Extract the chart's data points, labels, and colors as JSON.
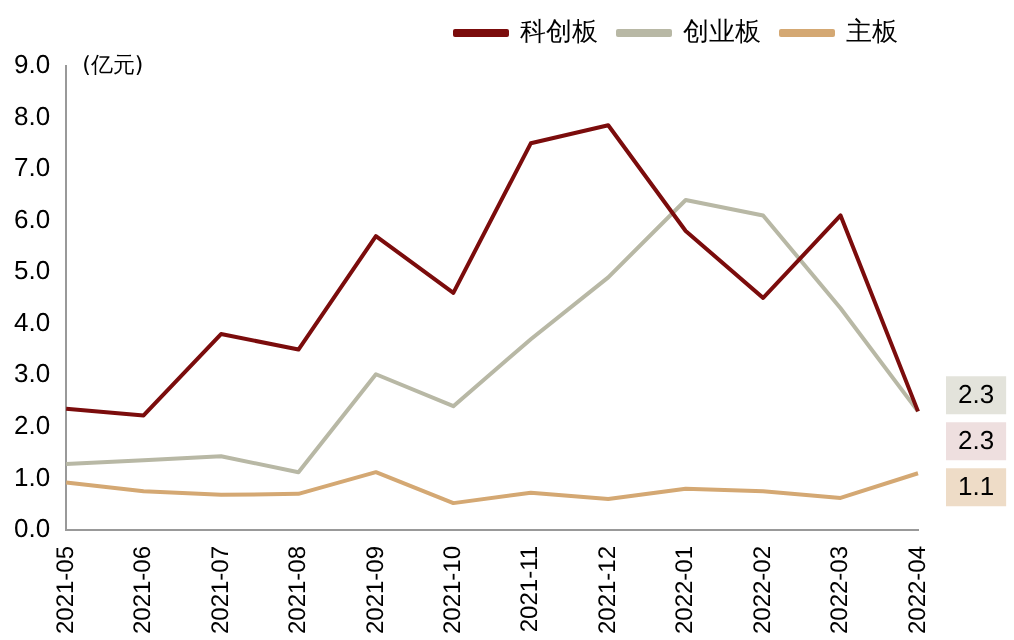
{
  "chart_data": {
    "type": "line",
    "ylabel": "(亿元)",
    "categories": [
      "2021-05",
      "2021-06",
      "2021-07",
      "2021-08",
      "2021-09",
      "2021-10",
      "2021-11",
      "2021-12",
      "2022-01",
      "2022-02",
      "2022-03",
      "2022-04"
    ],
    "series": [
      {
        "name": "科创板",
        "color": "#7b0c0c",
        "values": [
          2.35,
          2.22,
          3.8,
          3.5,
          5.7,
          4.6,
          7.5,
          7.85,
          5.8,
          4.5,
          6.1,
          2.3
        ],
        "value_labels": [
          null,
          null,
          null,
          null,
          null,
          null,
          null,
          null,
          null,
          null,
          null,
          "2.3"
        ]
      },
      {
        "name": "创业板",
        "color": "#b8b8a5",
        "values": [
          1.28,
          1.35,
          1.43,
          1.12,
          3.02,
          2.4,
          3.7,
          4.9,
          6.4,
          6.1,
          4.3,
          2.3
        ],
        "value_labels": [
          null,
          null,
          null,
          null,
          null,
          null,
          null,
          null,
          null,
          null,
          null,
          "2.3"
        ]
      },
      {
        "name": "主板",
        "color": "#d4a873",
        "values": [
          0.92,
          0.75,
          0.68,
          0.7,
          1.12,
          0.52,
          0.72,
          0.6,
          0.8,
          0.75,
          0.62,
          1.1
        ],
        "value_labels": [
          null,
          null,
          null,
          null,
          null,
          null,
          null,
          null,
          null,
          null,
          null,
          "1.1"
        ]
      }
    ],
    "ylim": [
      0,
      9
    ],
    "yticks": [
      {
        "value": 0,
        "label": "0.0"
      },
      {
        "value": 1,
        "label": "1.0"
      },
      {
        "value": 2,
        "label": "2.0"
      },
      {
        "value": 3,
        "label": "3.0"
      },
      {
        "value": 4,
        "label": "4.0"
      },
      {
        "value": 5,
        "label": "5.0"
      },
      {
        "value": 6,
        "label": "6.0"
      },
      {
        "value": 7,
        "label": "7.0"
      },
      {
        "value": 8,
        "label": "8.0"
      },
      {
        "value": 9,
        "label": "9.0"
      }
    ],
    "grid": false,
    "legend": "top",
    "marker": "none",
    "line_style": "solid"
  }
}
